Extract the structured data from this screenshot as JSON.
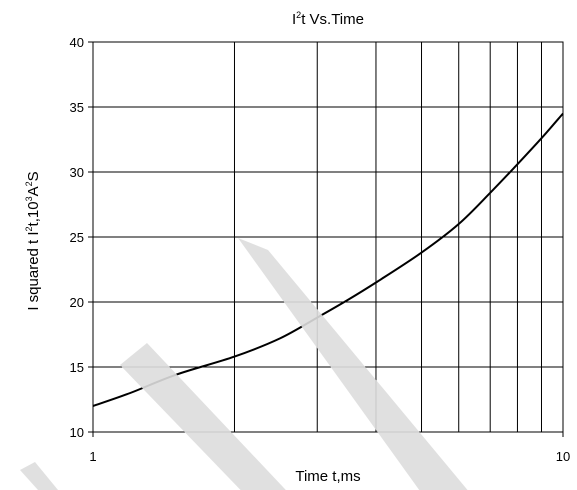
{
  "chart_data": {
    "type": "line",
    "title": {
      "base": "I",
      "sup": "2",
      "rest": "t  Vs.Time"
    },
    "xlabel": "Time  t,ms",
    "ylabel": {
      "part1": "I squared t  I",
      "sup1": "2",
      "part2": "t,10",
      "sup2": "3",
      "part3": "A",
      "sup3": "2",
      "part4": "S"
    },
    "x_scale": "log",
    "xlim": [
      1,
      10
    ],
    "x_gridlines": [
      2,
      3,
      4,
      5,
      6,
      7,
      8,
      9
    ],
    "x_tick_labels": [
      {
        "value": 1,
        "label": "1"
      },
      {
        "value": 10,
        "label": "10"
      }
    ],
    "ylim": [
      10,
      40
    ],
    "y_ticks": [
      10,
      15,
      20,
      25,
      30,
      35,
      40
    ],
    "grid": true,
    "series": [
      {
        "color": "#000000",
        "points": [
          {
            "x": 1.0,
            "y": 12.0
          },
          {
            "x": 1.2,
            "y": 13.0
          },
          {
            "x": 1.5,
            "y": 14.4
          },
          {
            "x": 2.0,
            "y": 15.8
          },
          {
            "x": 2.5,
            "y": 17.2
          },
          {
            "x": 3.0,
            "y": 18.8
          },
          {
            "x": 3.5,
            "y": 20.2
          },
          {
            "x": 4.0,
            "y": 21.5
          },
          {
            "x": 5.0,
            "y": 23.8
          },
          {
            "x": 6.0,
            "y": 26.0
          },
          {
            "x": 7.0,
            "y": 28.4
          },
          {
            "x": 8.0,
            "y": 30.6
          },
          {
            "x": 9.0,
            "y": 32.6
          },
          {
            "x": 10.0,
            "y": 34.5
          }
        ]
      }
    ],
    "watermark_color": "#dddddd"
  }
}
